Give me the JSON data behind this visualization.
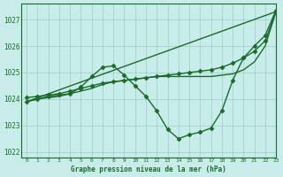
{
  "background_color": "#c8ece9",
  "grid_color": "#9fcfca",
  "line_color": "#1a6b2a",
  "title": "Graphe pression niveau de la mer (hPa)",
  "xlim": [
    -0.5,
    23
  ],
  "ylim": [
    1021.8,
    1027.6
  ],
  "yticks": [
    1022,
    1023,
    1024,
    1025,
    1026,
    1027
  ],
  "xticks": [
    0,
    1,
    2,
    3,
    4,
    5,
    6,
    7,
    8,
    9,
    10,
    11,
    12,
    13,
    14,
    15,
    16,
    17,
    18,
    19,
    20,
    21,
    22,
    23
  ],
  "series": [
    {
      "x": [
        0,
        1,
        2,
        3,
        4,
        5,
        6,
        7,
        8,
        9,
        10,
        11,
        12,
        13,
        14,
        15,
        16,
        17,
        18,
        19,
        20,
        21,
        22,
        23
      ],
      "y": [
        1024.05,
        1024.1,
        1024.15,
        1024.2,
        1024.3,
        1024.4,
        1024.5,
        1024.6,
        1024.65,
        1024.7,
        1024.75,
        1024.8,
        1024.85,
        1024.9,
        1024.95,
        1025.0,
        1025.05,
        1025.1,
        1025.2,
        1025.35,
        1025.55,
        1025.8,
        1026.2,
        1027.3
      ],
      "marker": "D",
      "markersize": 2.5,
      "linewidth": 1.0
    },
    {
      "x": [
        0,
        1,
        2,
        3,
        4,
        5,
        6,
        7,
        8,
        9,
        10,
        11,
        12,
        13,
        14,
        15,
        16,
        17,
        18,
        19,
        20,
        21,
        22,
        23
      ],
      "y": [
        1023.9,
        1024.0,
        1024.1,
        1024.15,
        1024.2,
        1024.45,
        1024.85,
        1025.2,
        1025.25,
        1024.9,
        1024.5,
        1024.1,
        1023.55,
        1022.85,
        1022.5,
        1022.65,
        1022.75,
        1022.9,
        1023.55,
        1024.7,
        1025.55,
        1026.0,
        1026.4,
        1027.35
      ],
      "marker": "D",
      "markersize": 2.5,
      "linewidth": 1.0
    },
    {
      "x": [
        0,
        23
      ],
      "y": [
        1023.9,
        1027.3
      ],
      "marker": null,
      "markersize": 0,
      "linewidth": 1.0
    },
    {
      "x": [
        0,
        1,
        2,
        3,
        4,
        5,
        6,
        7,
        8,
        9,
        10,
        11,
        12,
        13,
        14,
        15,
        16,
        17,
        18,
        19,
        20,
        21,
        22,
        23
      ],
      "y": [
        1023.9,
        1024.0,
        1024.05,
        1024.1,
        1024.2,
        1024.3,
        1024.4,
        1024.55,
        1024.65,
        1024.7,
        1024.75,
        1024.8,
        1024.85,
        1024.85,
        1024.85,
        1024.85,
        1024.85,
        1024.85,
        1024.9,
        1024.95,
        1025.1,
        1025.4,
        1026.0,
        1027.3
      ],
      "marker": null,
      "markersize": 0,
      "linewidth": 1.0
    }
  ]
}
